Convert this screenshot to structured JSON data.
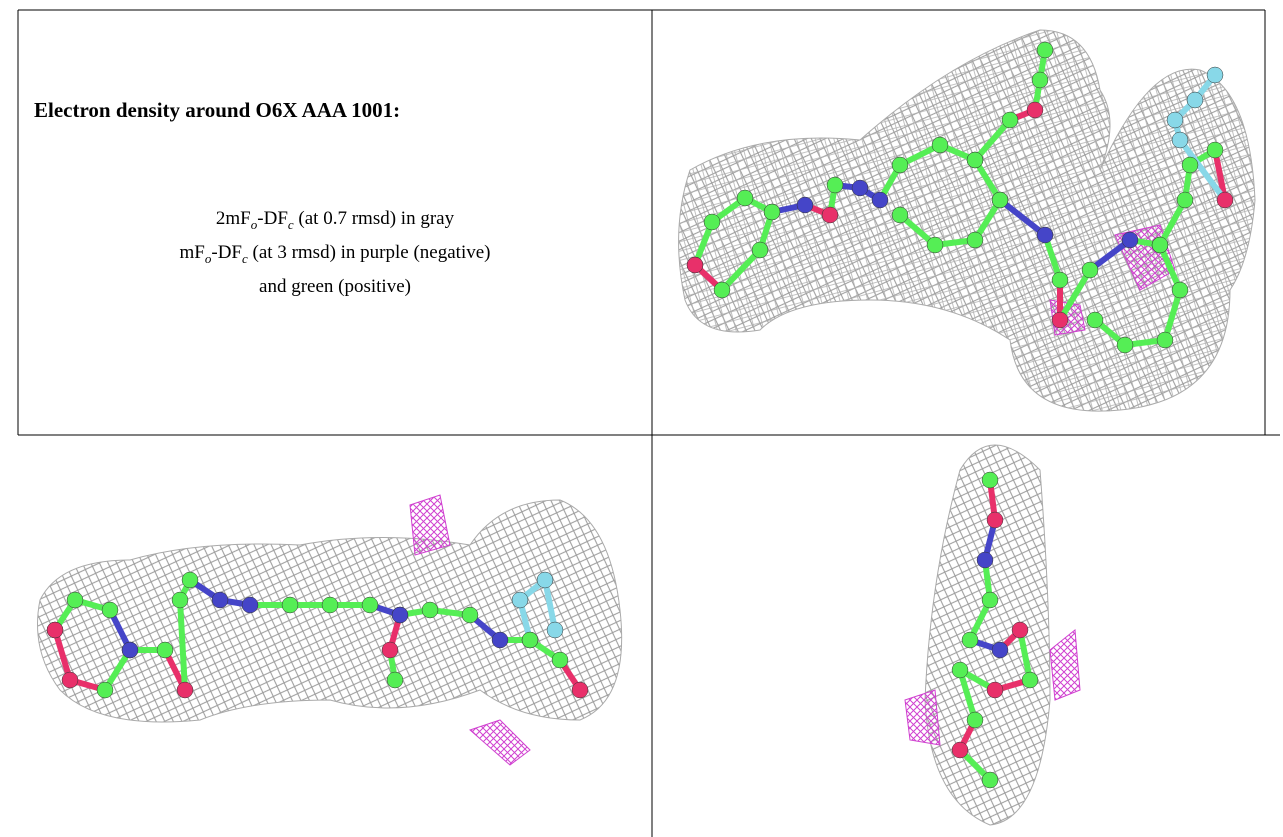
{
  "header": {
    "title": "Electron density around O6X AAA 1001:"
  },
  "legend": {
    "lines": [
      [
        "2mF",
        "o",
        "-DF",
        "c",
        " (at 0.7 rmsd) in gray"
      ],
      [
        "mF",
        "o",
        "-DF",
        "c",
        " (at 3 rmsd) in purple (negative)"
      ],
      [
        "and green (positive)"
      ]
    ]
  }
}
